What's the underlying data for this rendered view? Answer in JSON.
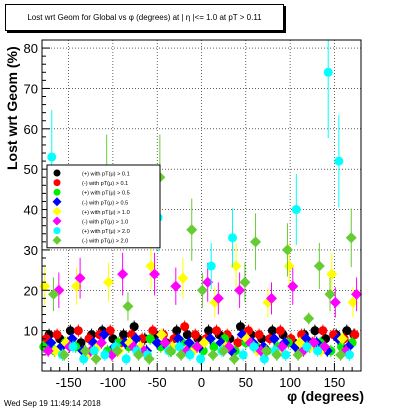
{
  "title": "Lost wrt Geom for Global vs φ (degrees) at | η |<= 1.0 at pT > 0.11",
  "footer": {
    "datestamp": "Wed Sep 19 11:49:14 2018"
  },
  "chart_data": {
    "type": "scatter",
    "title": "Lost wrt Geom for Global vs φ (degrees) at | η |<= 1.0 at pT > 0.11",
    "xlabel": "φ (degrees)",
    "ylabel": "Lost wrt Geom (%)",
    "xlim": [
      -180,
      180
    ],
    "ylim": [
      0,
      82
    ],
    "xticks": [
      -150,
      -100,
      -50,
      0,
      50,
      100,
      150
    ],
    "yticks": [
      10,
      20,
      30,
      40,
      50,
      60,
      70,
      80
    ],
    "grid": true,
    "legend_position": "upper-left",
    "colors": {
      "black": "#000000",
      "red": "#ff0000",
      "green": "#00ee00",
      "blue": "#0000ff",
      "yellow": "#ffff00",
      "magenta": "#ff00ff",
      "cyan": "#00ffff",
      "olive": "#66cc33"
    },
    "series": [
      {
        "name": "(+) with pT(μ) > 0.1",
        "color": "#000000",
        "marker": "circle",
        "x": [
          -172,
          -160,
          -148,
          -136,
          -124,
          -112,
          -100,
          -88,
          -76,
          -64,
          -52,
          -40,
          -28,
          -16,
          -4,
          8,
          20,
          32,
          44,
          56,
          68,
          80,
          92,
          104,
          116,
          128,
          140,
          152,
          164,
          172
        ],
        "y": [
          9,
          8,
          10,
          7,
          9,
          10,
          8,
          9,
          11,
          8,
          9,
          7,
          10,
          9,
          8,
          10,
          9,
          8,
          11,
          9,
          8,
          10,
          9,
          7,
          9,
          10,
          8,
          9,
          10,
          9
        ]
      },
      {
        "name": "(-) with pT(μ) > 0.1",
        "color": "#ff0000",
        "marker": "circle",
        "x": [
          -175,
          -163,
          -151,
          -139,
          -127,
          -115,
          -103,
          -91,
          -79,
          -67,
          -55,
          -43,
          -31,
          -19,
          -7,
          5,
          17,
          29,
          41,
          53,
          65,
          77,
          89,
          101,
          113,
          125,
          137,
          149,
          161,
          173
        ],
        "y": [
          8,
          9,
          7,
          10,
          8,
          9,
          10,
          7,
          9,
          8,
          10,
          9,
          8,
          11,
          9,
          8,
          10,
          9,
          7,
          10,
          9,
          8,
          10,
          8,
          9,
          7,
          10,
          9,
          8,
          9
        ]
      },
      {
        "name": "(+) with pT(μ) > 0.5",
        "color": "#00ee00",
        "marker": "circle",
        "x": [
          -178,
          -166,
          -154,
          -142,
          -130,
          -118,
          -106,
          -94,
          -82,
          -70,
          -58,
          -46,
          -34,
          -22,
          -10,
          2,
          14,
          26,
          38,
          50,
          62,
          74,
          86,
          98,
          110,
          122,
          134,
          146,
          158,
          170
        ],
        "y": [
          6,
          5,
          7,
          6,
          4,
          6,
          5,
          7,
          6,
          5,
          8,
          6,
          5,
          7,
          6,
          5,
          6,
          8,
          5,
          7,
          6,
          5,
          6,
          7,
          5,
          6,
          7,
          5,
          6,
          7
        ]
      },
      {
        "name": "(-) with pT(μ) > 0.5",
        "color": "#0000ff",
        "marker": "diamond",
        "x": [
          -170,
          -158,
          -146,
          -134,
          -122,
          -110,
          -98,
          -86,
          -74,
          -62,
          -50,
          -38,
          -26,
          -14,
          -2,
          10,
          22,
          34,
          46,
          58,
          70,
          82,
          94,
          106,
          118,
          130,
          142,
          154,
          166
        ],
        "y": [
          7,
          6,
          8,
          5,
          7,
          9,
          6,
          7,
          8,
          5,
          7,
          6,
          8,
          7,
          6,
          8,
          7,
          5,
          9,
          7,
          6,
          8,
          7,
          6,
          8,
          7,
          5,
          8,
          6
        ]
      },
      {
        "name": "(+) with pT(μ) > 1.0",
        "color": "#ffff00",
        "marker": "diamond",
        "x": [
          -177,
          -165,
          -153,
          -141,
          -129,
          -117,
          -105,
          -93,
          -81,
          -69,
          -57,
          -45,
          -33,
          -21,
          -9,
          3,
          15,
          27,
          39,
          51,
          63,
          75,
          87,
          99,
          111,
          123,
          135,
          147,
          159,
          171
        ],
        "y": [
          21,
          5,
          7,
          21,
          4,
          6,
          22,
          5,
          7,
          6,
          26,
          9,
          6,
          23,
          5,
          7,
          17,
          6,
          26,
          8,
          5,
          17,
          5,
          26,
          7,
          6,
          5,
          24,
          8,
          17
        ]
      },
      {
        "name": "(-) with pT(μ) > 1.0",
        "color": "#ff00ff",
        "marker": "diamond",
        "x": [
          -173,
          -161,
          -149,
          -137,
          -125,
          -113,
          -101,
          -89,
          -77,
          -65,
          -53,
          -41,
          -29,
          -17,
          -5,
          7,
          19,
          31,
          43,
          55,
          67,
          79,
          91,
          103,
          115,
          127,
          139,
          151,
          163,
          175
        ],
        "y": [
          5,
          20,
          6,
          23,
          5,
          7,
          4,
          24,
          6,
          5,
          24,
          7,
          21,
          5,
          6,
          22,
          18,
          6,
          20,
          7,
          5,
          18,
          6,
          21,
          5,
          7,
          6,
          17,
          5,
          19
        ]
      },
      {
        "name": "(+) with pT(μ) > 2.0",
        "color": "#00ffff",
        "marker": "circle",
        "x": [
          -169,
          -157,
          -145,
          -133,
          -121,
          -109,
          -97,
          -85,
          -73,
          -61,
          -49,
          -37,
          -25,
          -13,
          -1,
          11,
          23,
          35,
          47,
          59,
          71,
          83,
          95,
          107,
          119,
          131,
          143,
          155,
          167
        ],
        "y": [
          53,
          4,
          6,
          3,
          5,
          4,
          6,
          3,
          5,
          4,
          38,
          5,
          6,
          4,
          3,
          26,
          5,
          33,
          4,
          6,
          3,
          5,
          4,
          40,
          6,
          5,
          74,
          52,
          4
        ]
      },
      {
        "name": "(-) with pT(μ) > 2.0",
        "color": "#66cc33",
        "marker": "diamond",
        "x": [
          -167,
          -155,
          -143,
          -131,
          -119,
          -107,
          -95,
          -83,
          -71,
          -59,
          -47,
          -35,
          -23,
          -11,
          1,
          13,
          25,
          37,
          49,
          61,
          73,
          85,
          97,
          109,
          121,
          133,
          145,
          157,
          169
        ],
        "y": [
          19,
          4,
          41,
          5,
          3,
          48,
          5,
          16,
          4,
          3,
          48,
          5,
          4,
          35,
          20,
          4,
          5,
          3,
          22,
          32,
          5,
          4,
          30,
          4,
          13,
          26,
          19,
          4,
          33
        ]
      }
    ]
  }
}
